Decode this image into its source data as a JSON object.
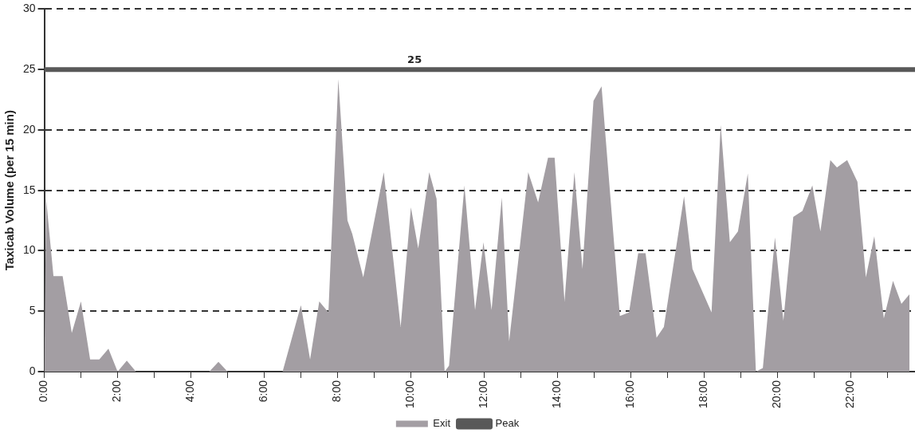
{
  "chart_data": {
    "type": "area",
    "ylabel": "Taxicab Volume (per 15 min)",
    "xlim": [
      0,
      23.75
    ],
    "xticks": [
      {
        "value": 0,
        "label": "0:00"
      },
      {
        "value": 1,
        "label": null
      },
      {
        "value": 2,
        "label": "2:00"
      },
      {
        "value": 3,
        "label": null
      },
      {
        "value": 4,
        "label": "4:00"
      },
      {
        "value": 5,
        "label": null
      },
      {
        "value": 6,
        "label": "6:00"
      },
      {
        "value": 7,
        "label": null
      },
      {
        "value": 8,
        "label": "8:00"
      },
      {
        "value": 9,
        "label": null
      },
      {
        "value": 10,
        "label": "10:00"
      },
      {
        "value": 11,
        "label": null
      },
      {
        "value": 12,
        "label": "12:00"
      },
      {
        "value": 13,
        "label": null
      },
      {
        "value": 14,
        "label": "14:00"
      },
      {
        "value": 15,
        "label": null
      },
      {
        "value": 16,
        "label": "16:00"
      },
      {
        "value": 17,
        "label": null
      },
      {
        "value": 18,
        "label": "18:00"
      },
      {
        "value": 19,
        "label": null
      },
      {
        "value": 20,
        "label": "20:00"
      },
      {
        "value": 21,
        "label": null
      },
      {
        "value": 22,
        "label": "22:00"
      },
      {
        "value": 23,
        "label": null
      }
    ],
    "ylim": [
      0,
      30
    ],
    "yticks": [
      0,
      5,
      10,
      15,
      20,
      25,
      30
    ],
    "grid": "y",
    "legend": "bottom",
    "series": [
      {
        "name": "Exit",
        "color": "#a39ea3",
        "x": [
          0,
          0.05,
          0.25,
          0.5,
          0.75,
          1.0,
          1.25,
          1.5,
          1.75,
          2.0,
          2.25,
          2.5,
          4.5,
          4.75,
          5.0,
          6.5,
          7.0,
          7.25,
          7.5,
          7.75,
          8.02,
          8.27,
          8.4,
          8.7,
          9.26,
          9.72,
          10.0,
          10.2,
          10.5,
          10.7,
          10.92,
          11.04,
          11.46,
          11.75,
          11.98,
          12.2,
          12.48,
          12.68,
          13.2,
          13.47,
          13.74,
          13.92,
          14.19,
          14.46,
          14.68,
          14.98,
          15.2,
          15.7,
          15.95,
          16.2,
          16.4,
          16.7,
          16.9,
          17.45,
          17.68,
          18.2,
          18.45,
          18.7,
          18.92,
          19.19,
          19.41,
          19.6,
          19.93,
          20.16,
          20.43,
          20.68,
          20.95,
          21.17,
          21.44,
          21.62,
          21.9,
          22.18,
          22.41,
          22.64,
          22.9,
          23.15,
          23.38,
          23.6
        ],
        "values": [
          0,
          14.3,
          7.9,
          7.9,
          3.2,
          5.8,
          1.0,
          1.0,
          1.9,
          0,
          0.9,
          0,
          0,
          0.8,
          0,
          0,
          5.5,
          1.0,
          5.8,
          4.9,
          24.2,
          12.5,
          11.4,
          7.8,
          16.5,
          3.7,
          13.6,
          10.2,
          16.5,
          14.3,
          0,
          0.5,
          15.4,
          5.1,
          10.7,
          5.1,
          14.4,
          2.5,
          16.5,
          14.0,
          17.7,
          17.7,
          5.8,
          16.5,
          8.5,
          22.4,
          23.6,
          4.6,
          4.9,
          9.8,
          9.8,
          2.8,
          3.7,
          14.5,
          8.5,
          4.9,
          20.4,
          10.7,
          11.6,
          16.4,
          0,
          0.3,
          11.1,
          4.2,
          12.8,
          13.3,
          15.4,
          11.6,
          17.5,
          16.9,
          17.5,
          15.7,
          7.8,
          11.2,
          4.4,
          7.5,
          5.6,
          6.4
        ]
      },
      {
        "name": "Peak",
        "type": "line",
        "color": "#595959",
        "x": [
          0,
          23.75
        ],
        "values": [
          25,
          25
        ]
      }
    ],
    "annotations": [
      {
        "text": "25",
        "x": 10.1,
        "y": 25
      }
    ]
  }
}
